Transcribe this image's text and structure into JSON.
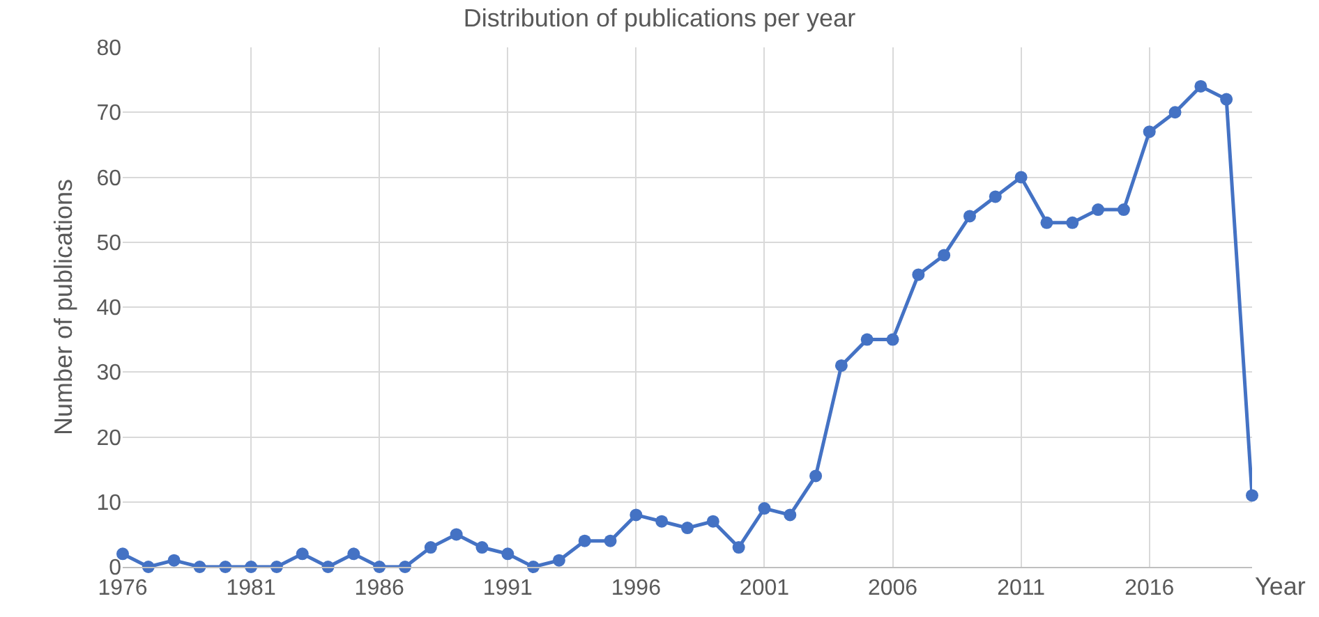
{
  "chart_data": {
    "type": "line",
    "title": "Distribution of publications per year",
    "xlabel": "Year",
    "ylabel": "Number of publications",
    "x": [
      1976,
      1977,
      1978,
      1979,
      1980,
      1981,
      1982,
      1983,
      1984,
      1985,
      1986,
      1987,
      1988,
      1989,
      1990,
      1991,
      1992,
      1993,
      1994,
      1995,
      1996,
      1997,
      1998,
      1999,
      2000,
      2001,
      2002,
      2003,
      2004,
      2005,
      2006,
      2007,
      2008,
      2009,
      2010,
      2011,
      2012,
      2013,
      2014,
      2015,
      2016,
      2017,
      2018,
      2019,
      2020
    ],
    "series": [
      {
        "color": "#4472c4",
        "values": [
          2,
          0,
          1,
          0,
          0,
          0,
          0,
          2,
          0,
          2,
          0,
          0,
          3,
          5,
          3,
          2,
          0,
          1,
          4,
          4,
          8,
          7,
          6,
          7,
          3,
          9,
          8,
          14,
          31,
          35,
          35,
          45,
          48,
          54,
          57,
          60,
          53,
          53,
          55,
          55,
          67,
          70,
          74,
          72,
          11
        ]
      }
    ],
    "xlim": [
      1976,
      2020
    ],
    "xticks": [
      1976,
      1981,
      1986,
      1991,
      1996,
      2001,
      2006,
      2011,
      2016
    ],
    "ylim": [
      0,
      80
    ],
    "yticks": [
      0,
      10,
      20,
      30,
      40,
      50,
      60,
      70,
      80
    ],
    "grid": true,
    "legend": false,
    "marker": "circle",
    "line_style": "solid"
  }
}
